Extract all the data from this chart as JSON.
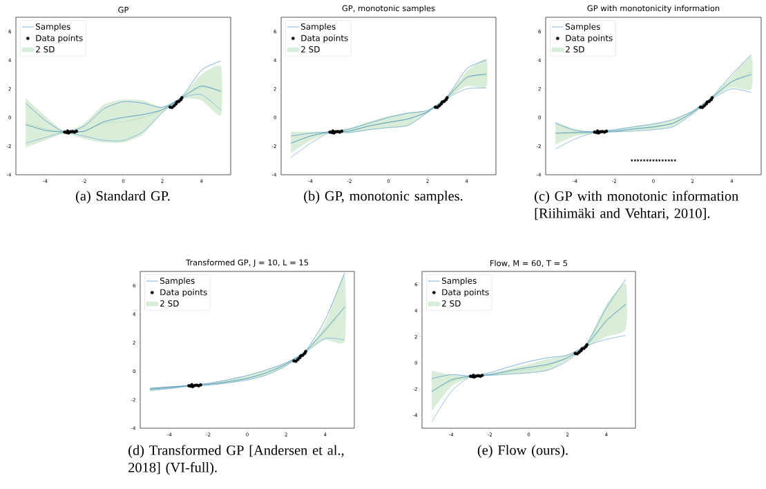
{
  "chart_data": [
    {
      "type": "line",
      "title": "GP",
      "annotations": [
        "(a) Standard GP."
      ],
      "x": [
        -5,
        -4,
        -3,
        -2,
        -1,
        0,
        1,
        2,
        3,
        4,
        5
      ],
      "xlim": [
        -5.5,
        5.5
      ],
      "ylim": [
        -4,
        7
      ],
      "xticks": [
        -4,
        -2,
        0,
        2,
        4
      ],
      "yticks": [
        -4,
        -2,
        0,
        2,
        4,
        6
      ],
      "legend": "top left",
      "series": [
        {
          "name": "Samples",
          "color": "#5a9bd0",
          "values": [
            1.0,
            -0.2,
            -1.0,
            -0.6,
            0.6,
            1.1,
            1.0,
            0.7,
            1.45,
            3.3,
            3.95
          ]
        },
        {
          "color": "#3f86c0",
          "values": [
            -0.5,
            -0.9,
            -1.02,
            -0.95,
            -0.3,
            0.0,
            0.2,
            0.55,
            1.4,
            2.2,
            1.8
          ]
        },
        {
          "color": "#7ab0da",
          "values": [
            -1.8,
            -1.4,
            -1.05,
            -1.3,
            -1.6,
            -1.6,
            -1.0,
            0.35,
            1.35,
            1.6,
            0.5
          ]
        },
        {
          "name": "Data points",
          "type": "scatter",
          "marker": "circle",
          "color": "#000000",
          "x": [
            -3.0,
            -2.9,
            -2.85,
            -2.8,
            -2.7,
            -2.6,
            -2.5,
            -2.4,
            2.4,
            2.5,
            2.6,
            2.7,
            2.75,
            2.85,
            2.95,
            3.0
          ],
          "values": [
            -1.02,
            -1.05,
            -0.95,
            -1.08,
            -1.0,
            -0.98,
            -1.02,
            -0.96,
            0.72,
            0.7,
            0.82,
            0.95,
            1.08,
            1.12,
            1.25,
            1.38
          ]
        },
        {
          "name": "2 SD",
          "color": "#b3dcb3",
          "values": [
            -0.4,
            -0.8,
            -1.0,
            -1.0,
            -0.4,
            -0.3,
            0,
            0.5,
            1.4,
            2.1,
            1.9
          ],
          "upper": [
            1.35,
            0.1,
            -0.95,
            -0.4,
            0.9,
            1.25,
            1.2,
            0.75,
            1.5,
            3.0,
            3.55
          ],
          "lower": [
            -2.1,
            -1.6,
            -1.1,
            -1.5,
            -1.75,
            -1.75,
            -1.2,
            0.3,
            1.3,
            1.2,
            0.15
          ]
        }
      ]
    },
    {
      "type": "line",
      "title": "GP, monotonic samples",
      "annotations": [
        "(b) GP, monotonic samples."
      ],
      "x": [
        -5,
        -4,
        -3,
        -2,
        -1,
        0,
        1,
        2,
        3,
        4,
        5
      ],
      "xlim": [
        -5.5,
        5.5
      ],
      "ylim": [
        -4,
        7
      ],
      "xticks": [
        -4,
        -2,
        0,
        2,
        4
      ],
      "yticks": [
        -4,
        -2,
        0,
        2,
        4,
        6
      ],
      "legend": "top left",
      "series": [
        {
          "name": "Samples",
          "color": "#5a9bd0",
          "values": [
            -1.3,
            -1.1,
            -1.0,
            -0.8,
            -0.4,
            0.0,
            0.3,
            0.5,
            1.45,
            3.4,
            4.0
          ]
        },
        {
          "color": "#3f86c0",
          "values": [
            -1.8,
            -1.3,
            -1.02,
            -0.95,
            -0.6,
            -0.35,
            -0.1,
            0.4,
            1.4,
            2.8,
            3.0
          ]
        },
        {
          "color": "#7ab0da",
          "values": [
            -2.8,
            -1.8,
            -1.05,
            -1.05,
            -0.85,
            -0.7,
            -0.55,
            0.35,
            1.35,
            2.0,
            2.05
          ]
        },
        {
          "name": "Data points",
          "type": "scatter",
          "marker": "circle",
          "color": "#000000",
          "x": [
            -3.0,
            -2.9,
            -2.85,
            -2.8,
            -2.7,
            -2.6,
            -2.5,
            -2.4,
            2.4,
            2.5,
            2.6,
            2.7,
            2.75,
            2.85,
            2.95,
            3.0
          ],
          "values": [
            -1.02,
            -1.05,
            -0.95,
            -1.08,
            -1.0,
            -0.98,
            -1.02,
            -0.96,
            0.72,
            0.7,
            0.82,
            0.95,
            1.08,
            1.12,
            1.25,
            1.38
          ]
        },
        {
          "name": "2 SD",
          "color": "#b3dcb3",
          "values": [
            -1.8,
            -1.3,
            -1.0,
            -0.9,
            -0.6,
            -0.3,
            -0.1,
            0.4,
            1.4,
            2.7,
            3.1
          ],
          "upper": [
            -1.0,
            -1.0,
            -0.98,
            -0.75,
            -0.3,
            0.1,
            0.35,
            0.5,
            1.5,
            3.2,
            4.1
          ],
          "lower": [
            -2.5,
            -1.6,
            -1.1,
            -1.1,
            -0.9,
            -0.75,
            -0.6,
            0.3,
            1.3,
            2.2,
            2.1
          ]
        }
      ]
    },
    {
      "type": "line",
      "title": "GP with monotonicity information",
      "annotations": [
        "(c) GP with monotonic information [Riihimäki and Vehtari, 2010]."
      ],
      "x": [
        -5,
        -4,
        -3,
        -2,
        -1,
        0,
        1,
        2,
        3,
        4,
        5
      ],
      "xlim": [
        -5.5,
        5.5
      ],
      "ylim": [
        -4,
        7
      ],
      "xticks": [
        -4,
        -2,
        0,
        2,
        4
      ],
      "yticks": [
        -4,
        -2,
        0,
        2,
        4,
        6
      ],
      "legend": "top left",
      "series": [
        {
          "name": "Samples",
          "color": "#5a9bd0",
          "values": [
            -0.4,
            -0.9,
            -1.0,
            -0.85,
            -0.65,
            -0.45,
            -0.15,
            0.45,
            1.45,
            3.0,
            4.4
          ]
        },
        {
          "color": "#3f86c0",
          "values": [
            -1.1,
            -1.05,
            -1.02,
            -0.95,
            -0.8,
            -0.65,
            -0.4,
            0.35,
            1.4,
            2.5,
            3.0
          ]
        },
        {
          "color": "#7ab0da",
          "values": [
            -2.2,
            -1.5,
            -1.05,
            -1.0,
            -0.95,
            -0.85,
            -0.65,
            0.25,
            1.3,
            2.0,
            1.75
          ]
        },
        {
          "name": "Data points",
          "type": "scatter",
          "marker": "circle",
          "color": "#000000",
          "x": [
            -3.0,
            -2.9,
            -2.85,
            -2.8,
            -2.7,
            -2.6,
            -2.5,
            -2.4,
            2.4,
            2.5,
            2.6,
            2.7,
            2.75,
            2.85,
            2.95,
            3.0
          ],
          "values": [
            -1.02,
            -1.05,
            -0.95,
            -1.08,
            -1.0,
            -0.98,
            -1.02,
            -0.96,
            0.72,
            0.7,
            0.82,
            0.95,
            1.08,
            1.12,
            1.25,
            1.38
          ]
        },
        {
          "type": "scatter",
          "marker": "star",
          "color": "#000000",
          "x": [
            -1.1,
            -0.94,
            -0.79,
            -0.63,
            -0.47,
            -0.31,
            -0.16,
            0,
            0.16,
            0.31,
            0.47,
            0.63,
            0.79,
            0.94,
            1.1
          ],
          "values": [
            -3,
            -3,
            -3,
            -3,
            -3,
            -3,
            -3,
            -3,
            -3,
            -3,
            -3,
            -3,
            -3,
            -3,
            -3
          ]
        },
        {
          "name": "2 SD",
          "color": "#b3dcb3",
          "values": [
            -1.1,
            -1.1,
            -1.1,
            -1.0,
            -0.8,
            -0.7,
            -0.4,
            0.4,
            1.4,
            2.5,
            3.2
          ],
          "upper": [
            -0.3,
            -0.8,
            -1.0,
            -0.85,
            -0.65,
            -0.45,
            -0.15,
            0.45,
            1.45,
            2.9,
            4.3
          ],
          "lower": [
            -1.9,
            -1.3,
            -1.1,
            -1.05,
            -0.95,
            -0.85,
            -0.65,
            0.25,
            1.3,
            2.1,
            2.0
          ]
        }
      ]
    },
    {
      "type": "line",
      "title": "Transformed GP, J = 10, L = 15",
      "annotations": [
        "(d) Transformed GP [Andersen et al., 2018] (VI-full)."
      ],
      "x": [
        -5,
        -4,
        -3,
        -2,
        -1,
        0,
        1,
        2,
        3,
        4,
        5
      ],
      "xlim": [
        -5.5,
        5.5
      ],
      "ylim": [
        -4,
        7
      ],
      "xticks": [
        -4,
        -2,
        0,
        2,
        4
      ],
      "yticks": [
        -4,
        -2,
        0,
        2,
        4,
        6
      ],
      "legend": "top left",
      "series": [
        {
          "name": "Samples",
          "color": "#5a9bd0",
          "values": [
            -1.2,
            -1.1,
            -1.0,
            -0.85,
            -0.6,
            -0.3,
            0.1,
            0.6,
            1.45,
            3.6,
            6.9
          ]
        },
        {
          "color": "#3f86c0",
          "values": [
            -1.25,
            -1.15,
            -1.02,
            -0.92,
            -0.75,
            -0.5,
            -0.1,
            0.5,
            1.4,
            2.9,
            4.5
          ]
        },
        {
          "color": "#7ab0da",
          "values": [
            -1.35,
            -1.22,
            -1.05,
            -0.98,
            -0.82,
            -0.62,
            -0.25,
            0.4,
            1.35,
            2.3,
            2.2
          ]
        },
        {
          "name": "Data points",
          "type": "scatter",
          "marker": "circle",
          "color": "#000000",
          "x": [
            -3.0,
            -2.9,
            -2.85,
            -2.8,
            -2.7,
            -2.6,
            -2.5,
            -2.4,
            2.4,
            2.5,
            2.6,
            2.7,
            2.75,
            2.85,
            2.95,
            3.0
          ],
          "values": [
            -1.02,
            -1.05,
            -0.95,
            -1.08,
            -1.0,
            -0.98,
            -1.02,
            -0.96,
            0.72,
            0.7,
            0.82,
            0.95,
            1.08,
            1.12,
            1.25,
            1.38
          ]
        },
        {
          "name": "2 SD",
          "color": "#b3dcb3",
          "values": [
            -1.3,
            -1.2,
            -1.0,
            -0.9,
            -0.7,
            -0.5,
            -0.1,
            0.5,
            1.4,
            2.8,
            4.5
          ],
          "upper": [
            -1.15,
            -1.05,
            -0.98,
            -0.85,
            -0.6,
            -0.3,
            0.1,
            0.6,
            1.45,
            3.3,
            6.8
          ],
          "lower": [
            -1.4,
            -1.25,
            -1.1,
            -1.0,
            -0.85,
            -0.65,
            -0.3,
            0.35,
            1.3,
            2.2,
            2.1
          ]
        }
      ]
    },
    {
      "type": "line",
      "title": "Flow, M = 60, T = 5",
      "annotations": [
        "(e) Flow (ours)."
      ],
      "x": [
        -5,
        -4,
        -3,
        -2,
        -1,
        0,
        1,
        2,
        3,
        4,
        5
      ],
      "xlim": [
        -5.5,
        5.5
      ],
      "ylim": [
        -5,
        7
      ],
      "xticks": [
        -4,
        -2,
        0,
        2,
        4
      ],
      "yticks": [
        -4,
        -2,
        0,
        2,
        4,
        6
      ],
      "legend": "top left",
      "series": [
        {
          "name": "Samples",
          "color": "#5a9bd0",
          "values": [
            -1.2,
            -0.9,
            -1.0,
            -0.75,
            -0.3,
            0.1,
            0.4,
            0.6,
            1.5,
            4.2,
            6.4
          ]
        },
        {
          "color": "#3f86c0",
          "values": [
            -2.2,
            -1.3,
            -1.02,
            -0.9,
            -0.6,
            -0.35,
            -0.1,
            0.4,
            1.4,
            3.2,
            4.5
          ]
        },
        {
          "color": "#7ab0da",
          "values": [
            -4.5,
            -2.2,
            -1.05,
            -0.95,
            -0.85,
            -0.75,
            -0.55,
            0.15,
            1.3,
            1.8,
            2.1
          ]
        },
        {
          "name": "Data points",
          "type": "scatter",
          "marker": "circle",
          "color": "#000000",
          "x": [
            -3.0,
            -2.9,
            -2.85,
            -2.8,
            -2.7,
            -2.6,
            -2.5,
            -2.4,
            2.4,
            2.5,
            2.6,
            2.7,
            2.75,
            2.85,
            2.95,
            3.0
          ],
          "values": [
            -1.02,
            -1.05,
            -0.95,
            -1.08,
            -1.0,
            -0.98,
            -1.02,
            -0.96,
            0.72,
            0.7,
            0.82,
            0.95,
            1.08,
            1.12,
            1.25,
            1.38
          ]
        },
        {
          "name": "2 SD",
          "color": "#b3dcb3",
          "values": [
            -2.2,
            -1.4,
            -1.1,
            -0.9,
            -0.7,
            -0.5,
            -0.2,
            0.4,
            1.4,
            3.3,
            4.4
          ],
          "upper": [
            -0.6,
            -0.9,
            -1.0,
            -0.8,
            -0.45,
            -0.1,
            0.3,
            0.6,
            1.6,
            4.5,
            6.1
          ],
          "lower": [
            -3.7,
            -1.8,
            -1.1,
            -1.0,
            -0.9,
            -0.8,
            -0.6,
            0.2,
            1.2,
            2.0,
            2.6
          ]
        }
      ]
    }
  ]
}
